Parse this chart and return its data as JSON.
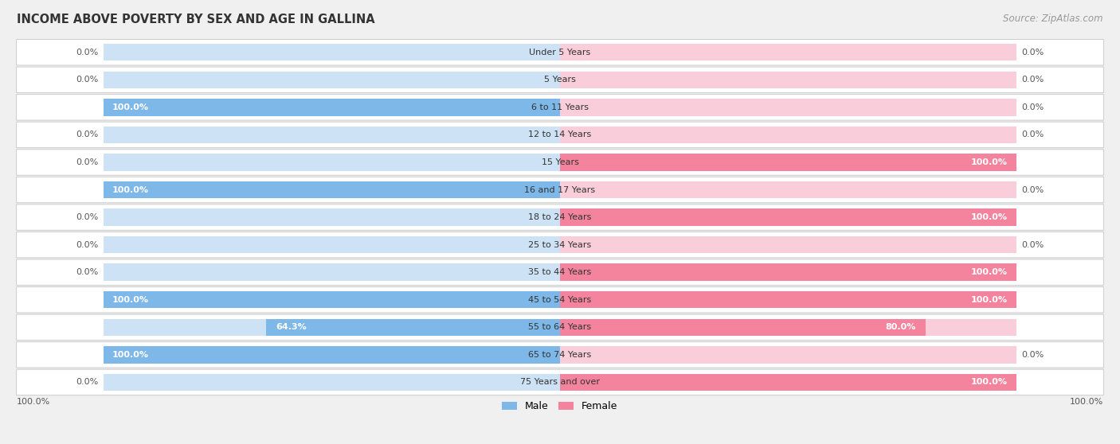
{
  "title": "INCOME ABOVE POVERTY BY SEX AND AGE IN GALLINA",
  "source": "Source: ZipAtlas.com",
  "categories": [
    "Under 5 Years",
    "5 Years",
    "6 to 11 Years",
    "12 to 14 Years",
    "15 Years",
    "16 and 17 Years",
    "18 to 24 Years",
    "25 to 34 Years",
    "35 to 44 Years",
    "45 to 54 Years",
    "55 to 64 Years",
    "65 to 74 Years",
    "75 Years and over"
  ],
  "male": [
    0.0,
    0.0,
    100.0,
    0.0,
    0.0,
    100.0,
    0.0,
    0.0,
    0.0,
    100.0,
    64.3,
    100.0,
    0.0
  ],
  "female": [
    0.0,
    0.0,
    0.0,
    0.0,
    100.0,
    0.0,
    100.0,
    0.0,
    100.0,
    100.0,
    80.0,
    0.0,
    100.0
  ],
  "male_color": "#7db8e8",
  "female_color": "#f4849e",
  "male_label": "Male",
  "female_label": "Female",
  "bg_color": "#f0f0f0",
  "row_bg_color": "#ffffff",
  "bar_bg_male": "#cde3f5",
  "bar_bg_female": "#f9cdd9",
  "title_fontsize": 10.5,
  "source_fontsize": 8.5,
  "label_fontsize": 8,
  "value_fontsize": 8,
  "legend_fontsize": 9
}
